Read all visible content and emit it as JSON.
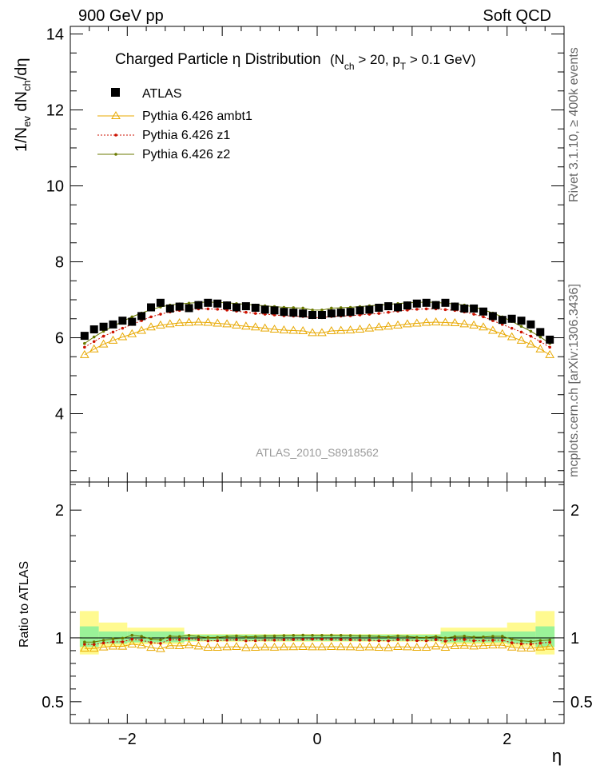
{
  "header": {
    "left": "900 GeV pp",
    "right": "Soft QCD"
  },
  "side_labels": {
    "rivet": "Rivet 3.1.10, ≥ 400k events",
    "mcplots": "mcplots.cern.ch [arXiv:1306.3436]"
  },
  "chart_data": {
    "type": "scatter",
    "title_main": "Charged Particle  η Distribution",
    "title_cuts": {
      "open": "(N",
      "nch_sub": "ch",
      "mid": " > 20, p",
      "pt_sub": "T",
      "close": " > 0.1 GeV)"
    },
    "ylabel": {
      "a": "1/N",
      "a_sub": "ev",
      "b": " dN",
      "b_sub": "ch",
      "c": "/dη"
    },
    "xlabel": "η",
    "ratio_ylabel": "Ratio to ATLAS",
    "watermark": "ATLAS_2010_S8918562",
    "xlim": [
      -2.6,
      2.6
    ],
    "ylim": [
      2.2,
      14.2
    ],
    "ratio_ylim": [
      0.33,
      2.22
    ],
    "xticks": [
      -2,
      0,
      2
    ],
    "xtick_labels": [
      "−2",
      "0",
      "2"
    ],
    "yticks": [
      4,
      6,
      8,
      10,
      12,
      14
    ],
    "ytick_labels": [
      "4",
      "6",
      "8",
      "10",
      "12",
      "14"
    ],
    "ratio_yticks": [
      0.5,
      1,
      2
    ],
    "ratio_ytick_labels": [
      "0.5",
      "1",
      "2"
    ],
    "eta": [
      -2.45,
      -2.35,
      -2.25,
      -2.15,
      -2.05,
      -1.95,
      -1.85,
      -1.75,
      -1.65,
      -1.55,
      -1.45,
      -1.35,
      -1.25,
      -1.15,
      -1.05,
      -0.95,
      -0.85,
      -0.75,
      -0.65,
      -0.55,
      -0.45,
      -0.35,
      -0.25,
      -0.15,
      -0.05,
      0.05,
      0.15,
      0.25,
      0.35,
      0.45,
      0.55,
      0.65,
      0.75,
      0.85,
      0.95,
      1.05,
      1.15,
      1.25,
      1.35,
      1.45,
      1.55,
      1.65,
      1.75,
      1.85,
      1.95,
      2.05,
      2.15,
      2.25,
      2.35,
      2.45
    ],
    "legend": [
      "ATLAS",
      "Pythia 6.426 ambt1",
      "Pythia 6.426 z1",
      "Pythia 6.426 z2"
    ],
    "series": [
      {
        "name": "ATLAS",
        "color": "#000000",
        "values": [
          6.05,
          6.22,
          6.29,
          6.35,
          6.45,
          6.42,
          6.57,
          6.8,
          6.92,
          6.77,
          6.82,
          6.78,
          6.86,
          6.92,
          6.9,
          6.85,
          6.8,
          6.83,
          6.79,
          6.74,
          6.72,
          6.68,
          6.66,
          6.64,
          6.6,
          6.6,
          6.64,
          6.66,
          6.68,
          6.72,
          6.74,
          6.79,
          6.83,
          6.8,
          6.85,
          6.9,
          6.92,
          6.86,
          6.92,
          6.82,
          6.77,
          6.77,
          6.69,
          6.57,
          6.47,
          6.5,
          6.45,
          6.35,
          6.15,
          5.95
        ]
      },
      {
        "name": "Pythia 6.426 ambt1",
        "color": "#e8a800",
        "values": [
          5.55,
          5.7,
          5.83,
          5.93,
          6.02,
          6.1,
          6.19,
          6.28,
          6.33,
          6.36,
          6.39,
          6.4,
          6.41,
          6.4,
          6.38,
          6.36,
          6.33,
          6.3,
          6.28,
          6.25,
          6.22,
          6.2,
          6.19,
          6.18,
          6.13,
          6.13,
          6.18,
          6.19,
          6.2,
          6.22,
          6.25,
          6.28,
          6.3,
          6.33,
          6.36,
          6.38,
          6.4,
          6.41,
          6.4,
          6.39,
          6.36,
          6.33,
          6.28,
          6.19,
          6.1,
          6.02,
          5.93,
          5.83,
          5.7,
          5.55
        ]
      },
      {
        "name": "Pythia 6.426 z1",
        "color": "#cc1100",
        "values": [
          5.75,
          5.9,
          6.04,
          6.15,
          6.25,
          6.35,
          6.45,
          6.55,
          6.62,
          6.68,
          6.72,
          6.74,
          6.76,
          6.76,
          6.75,
          6.73,
          6.7,
          6.67,
          6.64,
          6.62,
          6.6,
          6.58,
          6.57,
          6.56,
          6.53,
          6.53,
          6.56,
          6.57,
          6.58,
          6.6,
          6.62,
          6.64,
          6.67,
          6.7,
          6.73,
          6.75,
          6.76,
          6.76,
          6.74,
          6.72,
          6.68,
          6.62,
          6.55,
          6.45,
          6.35,
          6.25,
          6.15,
          6.04,
          5.9,
          5.75
        ]
      },
      {
        "name": "Pythia 6.426 z2",
        "color": "#6b7a00",
        "values": [
          5.85,
          6.02,
          6.17,
          6.3,
          6.43,
          6.55,
          6.65,
          6.74,
          6.81,
          6.86,
          6.89,
          6.91,
          6.93,
          6.94,
          6.93,
          6.92,
          6.9,
          6.88,
          6.86,
          6.84,
          6.82,
          6.8,
          6.79,
          6.78,
          6.73,
          6.73,
          6.78,
          6.79,
          6.8,
          6.82,
          6.84,
          6.86,
          6.88,
          6.9,
          6.92,
          6.93,
          6.94,
          6.93,
          6.91,
          6.89,
          6.86,
          6.81,
          6.74,
          6.65,
          6.55,
          6.43,
          6.3,
          6.17,
          6.02,
          5.85
        ]
      }
    ],
    "uncertainty_bands": {
      "outer_color": "#fffa90",
      "inner_color": "#9af298",
      "bins": [
        {
          "x0": -2.5,
          "x1": -2.3,
          "inner": [
            0.93,
            1.09
          ],
          "outer": [
            0.87,
            1.21
          ]
        },
        {
          "x0": -2.3,
          "x1": -2.0,
          "inner": [
            0.955,
            1.05
          ],
          "outer": [
            0.93,
            1.12
          ]
        },
        {
          "x0": -2.0,
          "x1": -1.4,
          "inner": [
            0.965,
            1.05
          ],
          "outer": [
            0.95,
            1.08
          ]
        },
        {
          "x0": -1.4,
          "x1": 1.3,
          "inner": [
            0.975,
            1.025
          ],
          "outer": [
            0.97,
            1.03
          ]
        },
        {
          "x0": 1.3,
          "x1": 2.0,
          "inner": [
            0.965,
            1.05
          ],
          "outer": [
            0.95,
            1.08
          ]
        },
        {
          "x0": 2.0,
          "x1": 2.3,
          "inner": [
            0.955,
            1.05
          ],
          "outer": [
            0.93,
            1.12
          ]
        },
        {
          "x0": 2.3,
          "x1": 2.5,
          "inner": [
            0.93,
            1.09
          ],
          "outer": [
            0.87,
            1.21
          ]
        }
      ]
    }
  }
}
